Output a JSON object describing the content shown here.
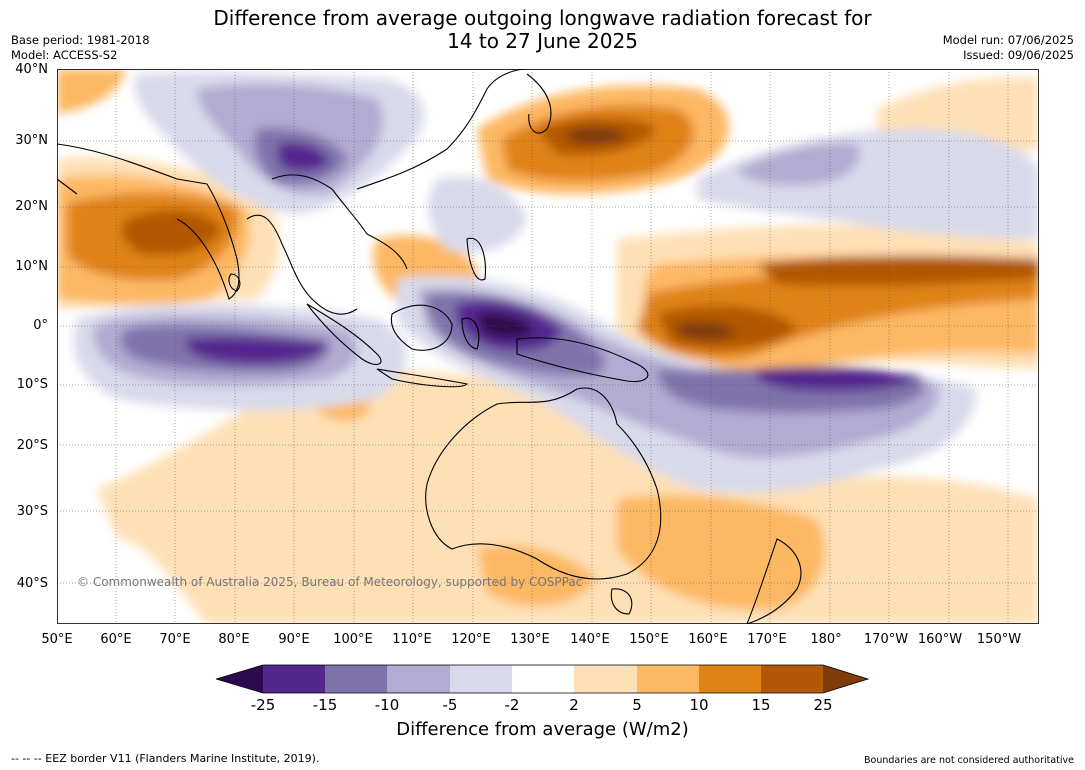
{
  "header": {
    "title_line1": "Difference from average outgoing longwave radiation forecast for",
    "title_line2": "14 to 27 June 2025",
    "base_period": "Base period: 1981-2018",
    "model": "Model: ACCESS-S2",
    "model_run": "Model run: 07/06/2025",
    "issued": "Issued: 09/06/2025"
  },
  "map": {
    "copyright": "© Commonwealth of Australia 2025, Bureau of Meteorology, supported by COSPPac",
    "lon_labels": [
      "50°E",
      "60°E",
      "70°E",
      "80°E",
      "90°E",
      "100°E",
      "110°E",
      "120°E",
      "130°E",
      "140°E",
      "150°E",
      "160°E",
      "170°E",
      "180°",
      "170°W",
      "160°W",
      "150°W"
    ],
    "lat_labels": [
      "40°N",
      "30°N",
      "20°N",
      "10°N",
      "0°",
      "10°S",
      "20°S",
      "30°S",
      "40°S"
    ],
    "lon_range": [
      50,
      215
    ],
    "lat_range": [
      -46,
      40
    ]
  },
  "colorbar": {
    "label": "Difference from average (W/m2)",
    "ticks": [
      "-25",
      "-15",
      "-10",
      "-5",
      "-2",
      "2",
      "5",
      "10",
      "15",
      "25"
    ],
    "colors": [
      "#2d0a4e",
      "#54278f",
      "#8073ac",
      "#b2abd2",
      "#d8daeb",
      "#ffffff",
      "#fee0b6",
      "#fdb863",
      "#e08214",
      "#b35806",
      "#7f3b08"
    ]
  },
  "footer": {
    "eez_note": "--  --  -- EEZ border V11 (Flanders Marine Institute, 2019).",
    "disclaimer": "Boundaries are not considered authoritative"
  }
}
